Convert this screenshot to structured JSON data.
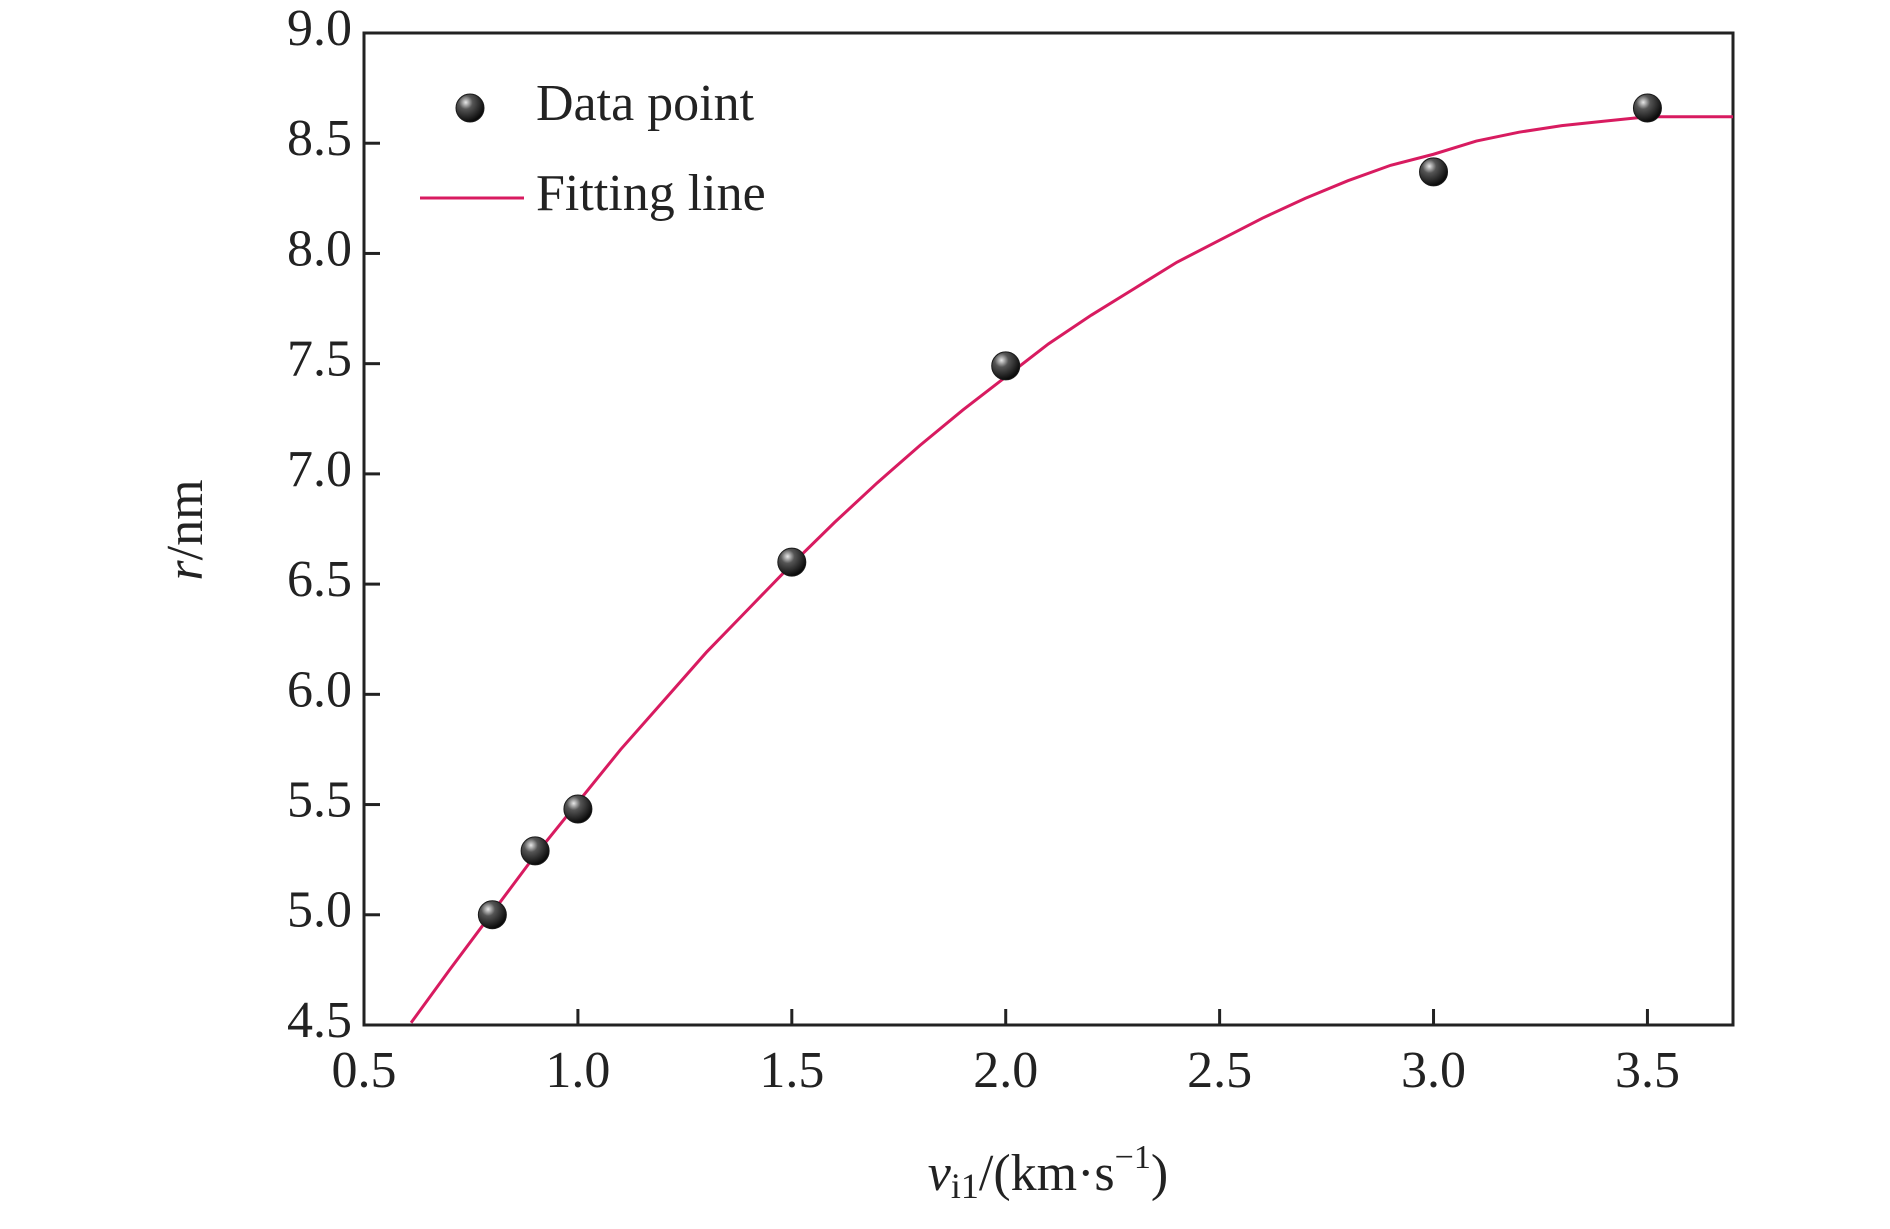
{
  "chart_data": {
    "type": "scatter",
    "xlabel": [
      "v",
      "i1",
      "/(km·s",
      "−1",
      ")"
    ],
    "ylabel": [
      "r",
      "/nm"
    ],
    "xlim": [
      0.5,
      3.7
    ],
    "ylim": [
      4.5,
      9.0
    ],
    "xticks": [
      0.5,
      {
        "value": 1.0,
        "label": "1.0"
      },
      1.5,
      {
        "value": 2.0,
        "label": "2.0"
      },
      2.5,
      {
        "value": 3.0,
        "label": "3.0"
      },
      3.5
    ],
    "yticks": [
      4.5,
      {
        "value": 5.0,
        "label": "5.0"
      },
      5.5,
      {
        "value": 6.0,
        "label": "6.0"
      },
      6.5,
      {
        "value": 7.0,
        "label": "7.0"
      },
      7.5,
      {
        "value": 8.0,
        "label": "8.0"
      },
      8.5,
      {
        "value": 9.0,
        "label": "9.0"
      }
    ],
    "legend": "upper left",
    "series": [
      {
        "name": "Data point",
        "type": "scatter",
        "color": "#1a1a1a",
        "x": [
          0.8,
          0.9,
          1.0,
          1.5,
          2.0,
          3.0,
          3.5
        ],
        "values": [
          5.0,
          5.29,
          5.48,
          6.6,
          7.49,
          8.37,
          8.66
        ]
      },
      {
        "name": "Fitting line",
        "type": "line",
        "color": "#d81b60",
        "x": [
          0.61,
          0.7,
          0.8,
          0.9,
          1.0,
          1.1,
          1.2,
          1.3,
          1.4,
          1.5,
          1.6,
          1.7,
          1.8,
          1.9,
          2.0,
          2.1,
          2.2,
          2.3,
          2.4,
          2.5,
          2.6,
          2.7,
          2.8,
          2.9,
          3.0,
          3.1,
          3.2,
          3.3,
          3.4,
          3.5,
          3.6,
          3.7
        ],
        "values": [
          4.51,
          4.75,
          5.01,
          5.27,
          5.51,
          5.75,
          5.97,
          6.19,
          6.39,
          6.59,
          6.78,
          6.96,
          7.13,
          7.29,
          7.44,
          7.59,
          7.72,
          7.84,
          7.96,
          8.06,
          8.16,
          8.25,
          8.33,
          8.4,
          8.45,
          8.51,
          8.55,
          8.58,
          8.6,
          8.62,
          8.62,
          8.62
        ]
      }
    ]
  }
}
